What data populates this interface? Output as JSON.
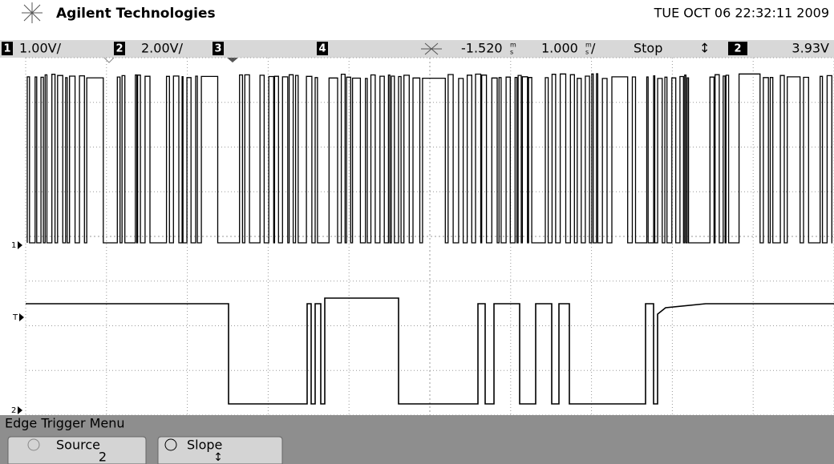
{
  "header": {
    "brand": "Agilent Technologies",
    "datetime": "TUE OCT 06 22:32:11 2009"
  },
  "status": {
    "ch1_num": "1",
    "ch1_scale": "1.00V/",
    "ch2_num": "2",
    "ch2_scale": "2.00V/",
    "ch3_num": "3",
    "ch4_num": "4",
    "delay": "-1.520",
    "delay_unit_top": "m",
    "delay_unit_bottom": "s",
    "timebase": "1.000",
    "timebase_unit_top": "m",
    "timebase_unit_bottom": "s",
    "timebase_suffix": "/",
    "run_state": "Stop",
    "trigger_symbol": "↕",
    "trigger_source": "2",
    "trigger_level": "3.93V"
  },
  "markers": {
    "ch1": "1",
    "trigger": "T",
    "ch2": "2"
  },
  "menu": {
    "title": "Edge Trigger Menu",
    "buttons": [
      {
        "label": "Source",
        "value": "2"
      },
      {
        "label": "Slope",
        "value": "↕"
      }
    ]
  }
}
